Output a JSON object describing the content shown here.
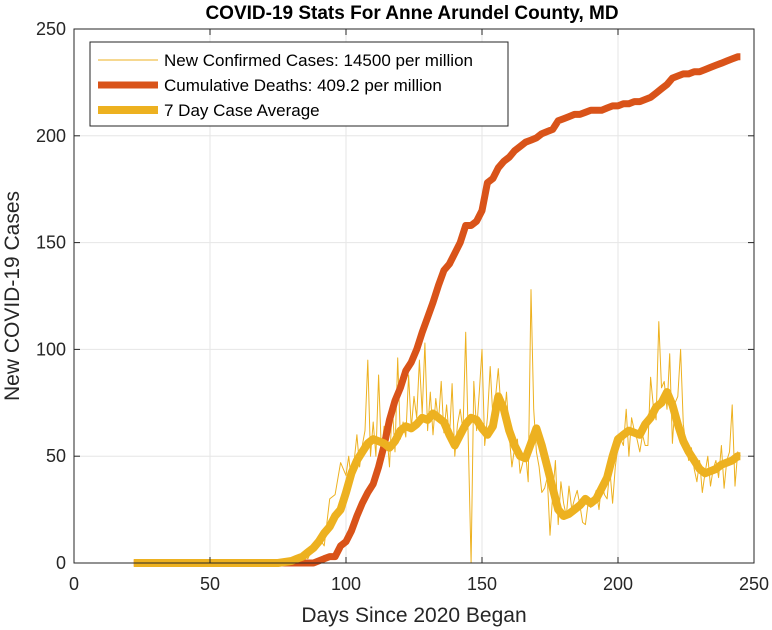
{
  "chart_data": {
    "type": "line",
    "title": "COVID-19 Stats For Anne Arundel County, MD",
    "xlabel": "Days Since 2020 Began",
    "ylabel": "New COVID-19 Cases",
    "xlim": [
      0,
      250
    ],
    "ylim": [
      0,
      250
    ],
    "xticks": [
      "0",
      "50",
      "100",
      "150",
      "200",
      "250"
    ],
    "yticks": [
      "0",
      "50",
      "100",
      "150",
      "200",
      "250"
    ],
    "grid": true,
    "legend_position": "top-left",
    "series": [
      {
        "name": "New Confirmed Cases: 14500 per million",
        "color": "#edb120",
        "x": [
          22,
          30,
          40,
          50,
          60,
          70,
          75,
          78,
          80,
          82,
          84,
          86,
          88,
          90,
          92,
          94,
          96,
          98,
          100,
          101,
          102,
          103,
          104,
          105,
          106,
          107,
          108,
          109,
          110,
          111,
          112,
          113,
          114,
          115,
          116,
          117,
          118,
          119,
          120,
          121,
          122,
          123,
          124,
          125,
          126,
          127,
          128,
          129,
          130,
          131,
          132,
          133,
          134,
          135,
          136,
          137,
          138,
          139,
          140,
          141,
          142,
          143,
          144,
          145,
          146,
          147,
          148,
          149,
          150,
          151,
          152,
          153,
          154,
          155,
          156,
          157,
          158,
          159,
          160,
          161,
          162,
          163,
          164,
          165,
          166,
          167,
          168,
          169,
          170,
          171,
          172,
          173,
          174,
          175,
          176,
          177,
          178,
          179,
          180,
          181,
          182,
          183,
          184,
          185,
          186,
          187,
          188,
          189,
          190,
          191,
          192,
          193,
          194,
          195,
          196,
          197,
          198,
          199,
          200,
          201,
          202,
          203,
          204,
          205,
          206,
          207,
          208,
          209,
          210,
          211,
          212,
          213,
          214,
          215,
          216,
          217,
          218,
          219,
          220,
          221,
          222,
          223,
          224,
          225,
          226,
          227,
          228,
          229,
          230,
          231,
          232,
          233,
          234,
          235,
          236,
          237,
          238,
          239,
          240,
          241,
          242,
          243,
          244,
          245
        ],
        "y": [
          0,
          0,
          0,
          0,
          0,
          0,
          0,
          1,
          2,
          3,
          4,
          2,
          8,
          12,
          8,
          30,
          32,
          47,
          41,
          50,
          38,
          48,
          60,
          45,
          55,
          62,
          95,
          50,
          66,
          50,
          88,
          52,
          64,
          61,
          45,
          74,
          52,
          96,
          58,
          66,
          59,
          88,
          63,
          78,
          68,
          95,
          70,
          103,
          62,
          80,
          60,
          77,
          66,
          85,
          61,
          74,
          58,
          84,
          50,
          65,
          72,
          62,
          108,
          55,
          0,
          85,
          62,
          80,
          100,
          55,
          68,
          92,
          68,
          78,
          91,
          72,
          66,
          80,
          60,
          45,
          54,
          58,
          42,
          47,
          52,
          38,
          128,
          72,
          52,
          45,
          33,
          35,
          40,
          13,
          32,
          48,
          18,
          38,
          28,
          22,
          36,
          25,
          30,
          34,
          27,
          19,
          18,
          28,
          26,
          30,
          34,
          25,
          38,
          32,
          30,
          44,
          28,
          45,
          55,
          58,
          55,
          72,
          50,
          68,
          62,
          58,
          52,
          60,
          55,
          55,
          87,
          73,
          67,
          113,
          82,
          85,
          72,
          98,
          56,
          75,
          78,
          100,
          65,
          55,
          48,
          54,
          44,
          38,
          48,
          33,
          42,
          50,
          36,
          44,
          48,
          40,
          55,
          35,
          48,
          52,
          74,
          36,
          52,
          50
        ],
        "line_width": 1
      },
      {
        "name": "Cumulative Deaths: 409.2 per million",
        "color": "#d95319",
        "x": [
          22,
          40,
          60,
          75,
          80,
          85,
          88,
          90,
          92,
          94,
          96,
          98,
          100,
          102,
          104,
          106,
          108,
          110,
          112,
          114,
          116,
          118,
          120,
          122,
          124,
          126,
          128,
          130,
          132,
          134,
          136,
          138,
          140,
          142,
          144,
          146,
          148,
          150,
          152,
          154,
          156,
          158,
          160,
          162,
          164,
          166,
          168,
          170,
          172,
          174,
          176,
          178,
          180,
          182,
          184,
          186,
          188,
          190,
          192,
          194,
          196,
          198,
          200,
          202,
          204,
          206,
          208,
          210,
          212,
          214,
          216,
          218,
          220,
          222,
          224,
          226,
          228,
          230,
          232,
          234,
          236,
          238,
          240,
          242,
          244,
          245
        ],
        "y": [
          0,
          0,
          0,
          0,
          0,
          0,
          0,
          1,
          2,
          3,
          3,
          8,
          10,
          15,
          22,
          28,
          33,
          37,
          45,
          55,
          67,
          76,
          82,
          90,
          94,
          100,
          108,
          115,
          122,
          130,
          137,
          140,
          145,
          150,
          158,
          158,
          160,
          165,
          178,
          180,
          185,
          188,
          190,
          193,
          195,
          197,
          198,
          199,
          201,
          202,
          203,
          207,
          208,
          209,
          210,
          210,
          211,
          212,
          212,
          212,
          213,
          214,
          214,
          215,
          215,
          216,
          216,
          217,
          218,
          220,
          222,
          224,
          227,
          228,
          229,
          229,
          230,
          230,
          231,
          232,
          233,
          234,
          235,
          236,
          237,
          237
        ],
        "line_width": 7
      },
      {
        "name": "7 Day Case Average",
        "color": "#edb120",
        "x": [
          22,
          40,
          60,
          75,
          80,
          82,
          84,
          86,
          88,
          90,
          92,
          94,
          96,
          98,
          100,
          102,
          104,
          106,
          108,
          110,
          112,
          114,
          116,
          118,
          120,
          122,
          124,
          126,
          128,
          130,
          132,
          134,
          136,
          138,
          140,
          142,
          144,
          146,
          148,
          150,
          152,
          154,
          156,
          158,
          160,
          162,
          164,
          166,
          168,
          170,
          172,
          174,
          176,
          178,
          180,
          182,
          184,
          186,
          188,
          190,
          192,
          194,
          196,
          198,
          200,
          202,
          204,
          206,
          208,
          210,
          212,
          214,
          216,
          218,
          220,
          222,
          224,
          226,
          228,
          230,
          232,
          234,
          236,
          238,
          240,
          242,
          244,
          245
        ],
        "y": [
          0,
          0,
          0,
          0,
          1,
          2,
          3,
          5,
          7,
          10,
          14,
          17,
          22,
          25,
          33,
          42,
          48,
          52,
          56,
          58,
          57,
          56,
          54,
          57,
          62,
          64,
          63,
          65,
          68,
          67,
          70,
          68,
          66,
          60,
          55,
          60,
          65,
          68,
          67,
          63,
          60,
          64,
          78,
          72,
          62,
          55,
          50,
          49,
          56,
          63,
          55,
          45,
          35,
          25,
          22,
          23,
          25,
          27,
          30,
          28,
          30,
          35,
          40,
          50,
          58,
          60,
          62,
          61,
          60,
          65,
          68,
          73,
          75,
          80,
          74,
          65,
          57,
          52,
          48,
          44,
          42,
          43,
          44,
          46,
          47,
          48,
          50,
          50
        ],
        "line_width": 8
      }
    ]
  }
}
